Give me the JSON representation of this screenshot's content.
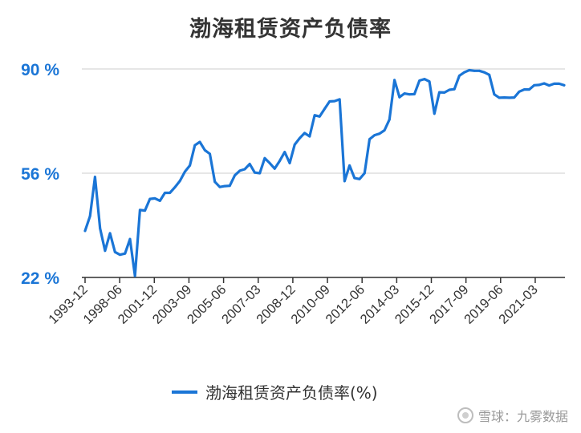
{
  "chart_data": {
    "type": "line",
    "title": "渤海租赁资产负债率",
    "xlabel": "",
    "ylabel": "",
    "ylim": [
      22,
      90
    ],
    "yticks": [
      "90 %",
      "56 %",
      "22 %"
    ],
    "ytick_values": [
      90,
      56,
      22
    ],
    "xticks": [
      "1993-12",
      "1998-06",
      "2001-12",
      "2003-09",
      "2005-06",
      "2007-03",
      "2008-12",
      "2010-09",
      "2012-06",
      "2014-03",
      "2015-12",
      "2017-09",
      "2019-06",
      "2021-03"
    ],
    "grid": "horizontal",
    "legend_position": "bottom",
    "series": [
      {
        "name": "渤海租赁资产负债率(%)",
        "color": "#1a75d6",
        "values": [
          37.2,
          42,
          54.8,
          38,
          30.7,
          36.4,
          30.3,
          29.4,
          29.8,
          34.5,
          22.5,
          44,
          43.8,
          47.6,
          47.8,
          47,
          49.6,
          49.6,
          51.4,
          53.5,
          56.5,
          58.5,
          65.1,
          66.2,
          63.5,
          62.3,
          53.2,
          51.5,
          51.8,
          51.9,
          55.3,
          56.8,
          57.3,
          59,
          56.2,
          56,
          60.9,
          59.3,
          57.5,
          60,
          62.9,
          59.3,
          65.3,
          67.4,
          69.1,
          68,
          74.9,
          74.5,
          77,
          79.4,
          79.5,
          80.1,
          53.4,
          58.5,
          54.4,
          54.1,
          56,
          67.1,
          68.4,
          68.9,
          70,
          73.5,
          86.4,
          80.8,
          82,
          81.7,
          81.8,
          86.2,
          86.7,
          85.9,
          75.4,
          82.4,
          82.3,
          83.2,
          83.4,
          87.8,
          88.9,
          89.6,
          89.4,
          89.4,
          88.9,
          88.1,
          81.7,
          80.6,
          80.7,
          80.6,
          80.7,
          82.6,
          83.3,
          83.3,
          84.7,
          84.8,
          85.3,
          84.6,
          85.2,
          85.2,
          84.7
        ]
      }
    ]
  },
  "watermark": "雪球：九雾数据"
}
